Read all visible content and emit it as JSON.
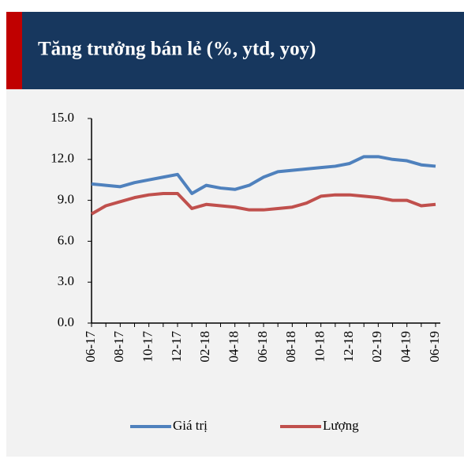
{
  "chart_data": {
    "type": "line",
    "title": "Tăng trưởng bán lẻ (%, ytd, yoy)",
    "categories": [
      "06-17",
      null,
      "08-17",
      null,
      "10-17",
      null,
      "12-17",
      null,
      "02-18",
      null,
      "04-18",
      null,
      "06-18",
      null,
      "08-18",
      null,
      "10-18",
      null,
      "12-18",
      null,
      "02-19",
      null,
      "04-19",
      null,
      "06-19"
    ],
    "series": [
      {
        "name": "Giá trị",
        "color": "#4f81bd",
        "values": [
          10.2,
          10.1,
          10.0,
          10.3,
          10.5,
          10.7,
          10.9,
          9.5,
          10.1,
          9.9,
          9.8,
          10.1,
          10.7,
          11.1,
          11.2,
          11.3,
          11.4,
          11.5,
          11.7,
          12.2,
          12.2,
          12.0,
          11.9,
          11.6,
          11.5
        ]
      },
      {
        "name": "Lượng",
        "color": "#c0504d",
        "values": [
          8.0,
          8.6,
          8.9,
          9.2,
          9.4,
          9.5,
          9.5,
          8.4,
          8.7,
          8.6,
          8.5,
          8.3,
          8.3,
          8.4,
          8.5,
          8.8,
          9.3,
          9.4,
          9.4,
          9.3,
          9.2,
          9.0,
          9.0,
          8.6,
          8.7
        ]
      }
    ],
    "ylim": [
      0,
      15
    ],
    "yticks": [
      {
        "value": 0,
        "label": "0.0"
      },
      {
        "value": 3,
        "label": "3.0"
      },
      {
        "value": 6,
        "label": "6.0"
      },
      {
        "value": 9,
        "label": "9.0"
      },
      {
        "value": 12,
        "label": "12.0"
      },
      {
        "value": 15,
        "label": "15.0"
      }
    ],
    "legend": "bottom"
  }
}
